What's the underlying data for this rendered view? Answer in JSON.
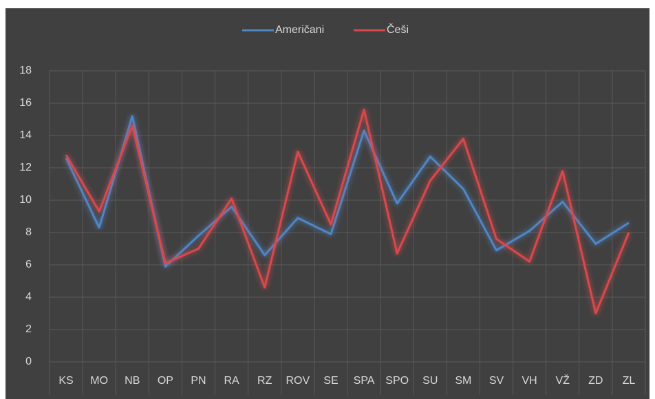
{
  "chart_data": {
    "type": "line",
    "categories": [
      "KS",
      "MO",
      "NB",
      "OP",
      "PN",
      "RA",
      "RZ",
      "ROV",
      "SE",
      "SPA",
      "SPO",
      "SU",
      "SM",
      "SV",
      "VH",
      "VŽ",
      "ZD",
      "ZL"
    ],
    "series": [
      {
        "name": "Američani",
        "color": "#4f86c6",
        "values": [
          12.6,
          8.3,
          15.2,
          5.9,
          7.8,
          9.6,
          6.6,
          8.9,
          7.9,
          14.3,
          9.8,
          12.7,
          10.7,
          6.9,
          8.1,
          9.9,
          7.3,
          8.6
        ]
      },
      {
        "name": "Češi",
        "color": "#d9484c",
        "values": [
          12.8,
          9.3,
          14.6,
          6.1,
          7.0,
          10.1,
          4.6,
          13.0,
          8.5,
          15.6,
          6.7,
          11.2,
          13.8,
          7.6,
          6.2,
          11.8,
          3.0,
          8.0
        ]
      }
    ],
    "ylim": [
      0,
      18
    ],
    "yticks": [
      0,
      2,
      4,
      6,
      8,
      10,
      12,
      14,
      16,
      18
    ],
    "grid": true,
    "legend": "top"
  }
}
